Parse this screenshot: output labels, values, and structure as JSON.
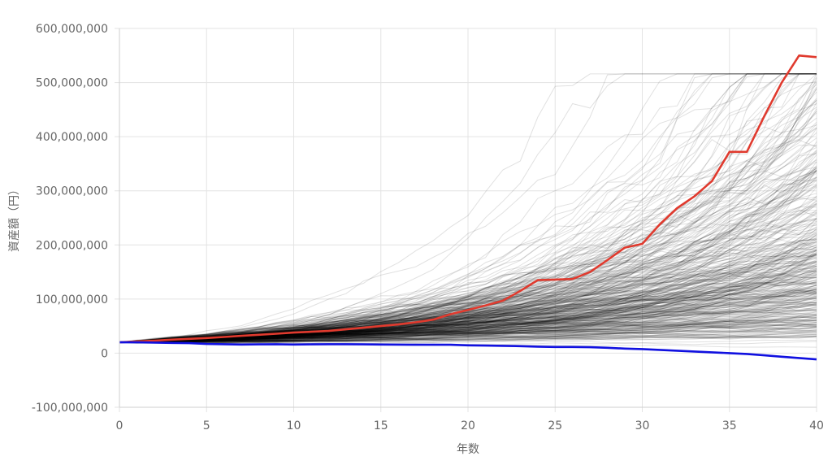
{
  "chart_data": {
    "type": "line",
    "xlabel": "年数",
    "ylabel": "資産額（円）",
    "xlim": [
      0,
      40
    ],
    "ylim": [
      -100000000,
      600000000
    ],
    "x_ticks": [
      0,
      5,
      10,
      15,
      20,
      25,
      30,
      35,
      40
    ],
    "y_ticks": [
      -100000000,
      0,
      100000000,
      200000000,
      300000000,
      400000000,
      500000000,
      600000000
    ],
    "x_tick_labels": [
      "0",
      "5",
      "10",
      "15",
      "20",
      "25",
      "30",
      "35",
      "40"
    ],
    "y_tick_labels": [
      "-100,000,000",
      "0",
      "100,000,000",
      "200,000,000",
      "300,000,000",
      "400,000,000",
      "500,000,000",
      "600,000,000"
    ],
    "grid": true,
    "x": [
      0,
      1,
      2,
      3,
      4,
      5,
      6,
      7,
      8,
      9,
      10,
      11,
      12,
      13,
      14,
      15,
      16,
      17,
      18,
      19,
      20,
      21,
      22,
      23,
      24,
      25,
      26,
      27,
      28,
      29,
      30,
      31,
      32,
      33,
      34,
      35,
      36,
      37,
      38,
      39,
      40
    ],
    "series": [
      {
        "color": "#e03a2e",
        "values": [
          20000000,
          21500000,
          23000000,
          25000000,
          26500000,
          28000000,
          30000000,
          32000000,
          34000000,
          36000000,
          38000000,
          39500000,
          41000000,
          44000000,
          47000000,
          50000000,
          53000000,
          57000000,
          62000000,
          72000000,
          80000000,
          88000000,
          97000000,
          115000000,
          135000000,
          136000000,
          137000000,
          150000000,
          172000000,
          195000000,
          202000000,
          238000000,
          268000000,
          290000000,
          318000000,
          372000000,
          372000000,
          438000000,
          500000000,
          550000000,
          547000000
        ]
      },
      {
        "color": "#1010e0",
        "values": [
          20000000,
          20000000,
          19500000,
          19000000,
          18500000,
          17000000,
          16500000,
          16000000,
          16200000,
          16500000,
          16000000,
          16200000,
          16500000,
          16500000,
          16200000,
          16000000,
          15800000,
          15500000,
          15500000,
          15500000,
          14500000,
          14000000,
          13500000,
          13000000,
          12000000,
          11500000,
          11500000,
          11000000,
          10000000,
          8500000,
          7500000,
          6000000,
          4500000,
          3000000,
          1500000,
          0,
          -1500000,
          -4000000,
          -6500000,
          -9000000,
          -11500000
        ]
      }
    ],
    "simulation_paths": {
      "count": 400,
      "color": "#000000",
      "start_value": 20000000,
      "median_end_value": 160000000,
      "spread_end_range": [
        20000000,
        515000000
      ]
    }
  }
}
